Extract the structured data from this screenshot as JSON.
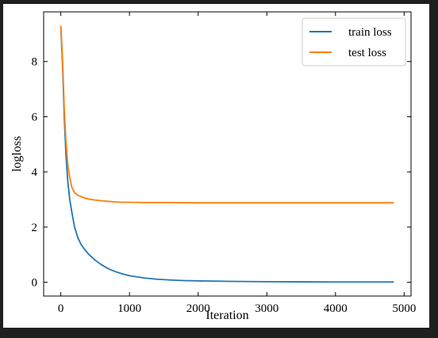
{
  "chart_data": {
    "type": "line",
    "title": "",
    "xlabel": "Iteration",
    "ylabel": "logloss",
    "xlim": [
      -250,
      5100
    ],
    "ylim": [
      -0.5,
      9.8
    ],
    "xticks": [
      0,
      1000,
      2000,
      3000,
      4000,
      5000
    ],
    "yticks": [
      0,
      2,
      4,
      6,
      8
    ],
    "grid": false,
    "legend_position": "top-right",
    "series": [
      {
        "name": "train loss",
        "color": "#1f77b4",
        "x": [
          0,
          25,
          50,
          75,
          100,
          130,
          160,
          200,
          250,
          300,
          350,
          400,
          500,
          600,
          700,
          800,
          900,
          1000,
          1200,
          1400,
          1600,
          1800,
          2000,
          2500,
          3000,
          3500,
          4000,
          4500,
          4850
        ],
        "y": [
          9.25,
          7.9,
          6.0,
          4.6,
          3.7,
          3.0,
          2.55,
          2.0,
          1.6,
          1.35,
          1.18,
          1.03,
          0.8,
          0.62,
          0.48,
          0.38,
          0.3,
          0.24,
          0.16,
          0.11,
          0.08,
          0.06,
          0.05,
          0.03,
          0.02,
          0.015,
          0.01,
          0.01,
          0.01
        ]
      },
      {
        "name": "test loss",
        "color": "#ff7f0e",
        "x": [
          0,
          25,
          50,
          75,
          100,
          130,
          160,
          200,
          250,
          300,
          350,
          400,
          500,
          600,
          700,
          800,
          900,
          1000,
          1200,
          1500,
          2000,
          2500,
          3000,
          3500,
          4000,
          4500,
          4850
        ],
        "y": [
          9.3,
          8.1,
          6.3,
          5.1,
          4.3,
          3.8,
          3.45,
          3.25,
          3.15,
          3.1,
          3.05,
          3.02,
          2.98,
          2.95,
          2.93,
          2.91,
          2.9,
          2.9,
          2.89,
          2.89,
          2.88,
          2.88,
          2.88,
          2.88,
          2.88,
          2.88,
          2.88
        ]
      }
    ]
  }
}
